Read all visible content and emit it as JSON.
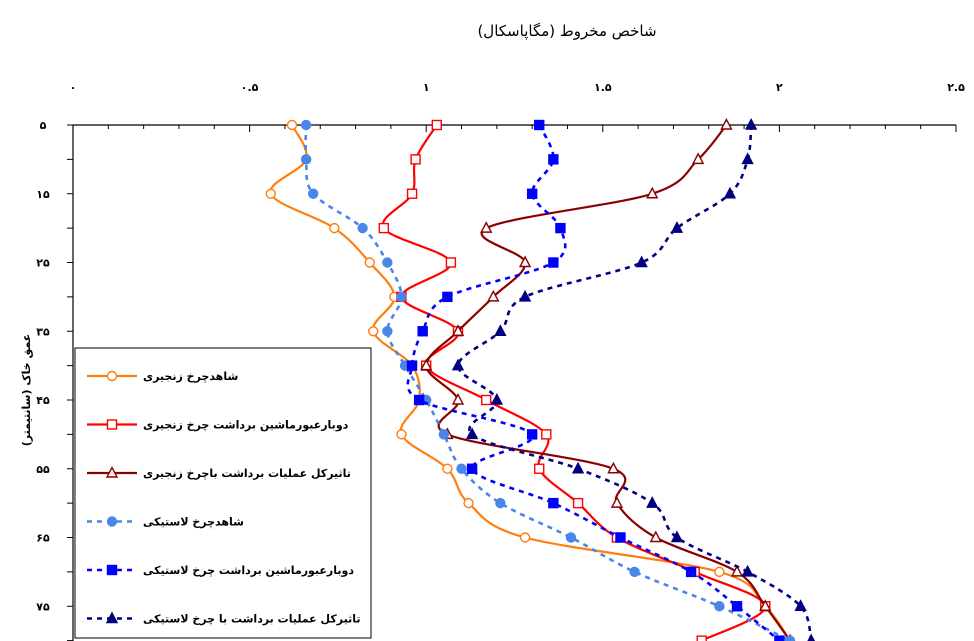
{
  "chart_data": {
    "type": "line",
    "title": "شاخص مخروط (مگاپاسکال)",
    "ylabel": "عمق خاک (سانتیمتر)",
    "xlim": [
      0,
      2.5
    ],
    "ylim": [
      5,
      80
    ],
    "x_ticks": [
      "۰",
      "۰.۵",
      "۱",
      "۱.۵",
      "۲",
      "۲.۵"
    ],
    "y_ticks": [
      "۵",
      "۱۵",
      "۲۵",
      "۳۵",
      "۴۵",
      "۵۵",
      "۶۵",
      "۷۵"
    ],
    "x_tick_values": [
      0,
      0.5,
      1,
      1.5,
      2,
      2.5
    ],
    "y_tick_values": [
      5,
      15,
      25,
      35,
      45,
      55,
      65,
      75
    ],
    "y_reversed": true,
    "legend_position": "left",
    "series": [
      {
        "name": "شاهدچرخ زنجیری",
        "color": "#ff7f0e",
        "dash": "solid",
        "marker": "circle-open",
        "depth": [
          5,
          10,
          15,
          20,
          25,
          30,
          35,
          40,
          45,
          50,
          55,
          60,
          65,
          70,
          75,
          80
        ],
        "value": [
          0.62,
          0.66,
          0.56,
          0.74,
          0.84,
          0.91,
          0.85,
          0.96,
          0.98,
          0.93,
          1.06,
          1.12,
          1.28,
          1.83,
          1.96,
          2.03
        ]
      },
      {
        "name": "دوبارعبورماشین برداشت چرخ زنجیری",
        "color": "#ff0000",
        "dash": "solid",
        "marker": "square-open",
        "depth": [
          5,
          10,
          15,
          20,
          25,
          30,
          35,
          40,
          45,
          50,
          55,
          60,
          65,
          70,
          75,
          80
        ],
        "value": [
          1.03,
          0.97,
          0.96,
          0.88,
          1.07,
          0.93,
          1.09,
          1.0,
          1.17,
          1.34,
          1.32,
          1.43,
          1.54,
          1.76,
          1.96,
          1.78
        ]
      },
      {
        "name": "تاثیرکل عملیات برداشت باچرخ زنجیری",
        "color": "#8b0000",
        "dash": "solid",
        "marker": "triangle-open",
        "depth": [
          5,
          10,
          15,
          20,
          25,
          30,
          35,
          40,
          45,
          50,
          55,
          60,
          65,
          70,
          75,
          80
        ],
        "value": [
          1.85,
          1.77,
          1.64,
          1.17,
          1.28,
          1.19,
          1.09,
          1.0,
          1.09,
          1.06,
          1.53,
          1.54,
          1.65,
          1.88,
          1.96,
          2.03
        ]
      },
      {
        "name": "شاهدچرخ لاستیکی",
        "color": "#4a86e8",
        "dash": "dashed",
        "marker": "circle-filled",
        "depth": [
          5,
          10,
          15,
          20,
          25,
          30,
          35,
          40,
          45,
          50,
          55,
          60,
          65,
          70,
          75,
          80
        ],
        "value": [
          0.66,
          0.66,
          0.68,
          0.82,
          0.89,
          0.93,
          0.89,
          0.94,
          1.0,
          1.05,
          1.1,
          1.21,
          1.41,
          1.59,
          1.83,
          2.03
        ]
      },
      {
        "name": "دوبارعبورماشین برداشت چرخ لاستیکی",
        "color": "#0000ff",
        "dash": "dashed",
        "marker": "square-filled",
        "depth": [
          5,
          10,
          15,
          20,
          25,
          30,
          35,
          40,
          45,
          50,
          55,
          60,
          65,
          70,
          75,
          80
        ],
        "value": [
          1.32,
          1.36,
          1.3,
          1.38,
          1.36,
          1.06,
          0.99,
          0.96,
          0.98,
          1.3,
          1.13,
          1.36,
          1.55,
          1.75,
          1.88,
          2.0
        ]
      },
      {
        "name": "تاثیرکل عملیات برداشت با چرخ لاستیکی",
        "color": "#000080",
        "dash": "dashed",
        "marker": "triangle-filled",
        "depth": [
          5,
          10,
          15,
          20,
          25,
          30,
          35,
          40,
          45,
          50,
          55,
          60,
          65,
          70,
          75,
          80
        ],
        "value": [
          1.92,
          1.91,
          1.86,
          1.71,
          1.61,
          1.28,
          1.21,
          1.09,
          1.2,
          1.13,
          1.43,
          1.64,
          1.71,
          1.91,
          2.06,
          2.09
        ]
      }
    ]
  }
}
